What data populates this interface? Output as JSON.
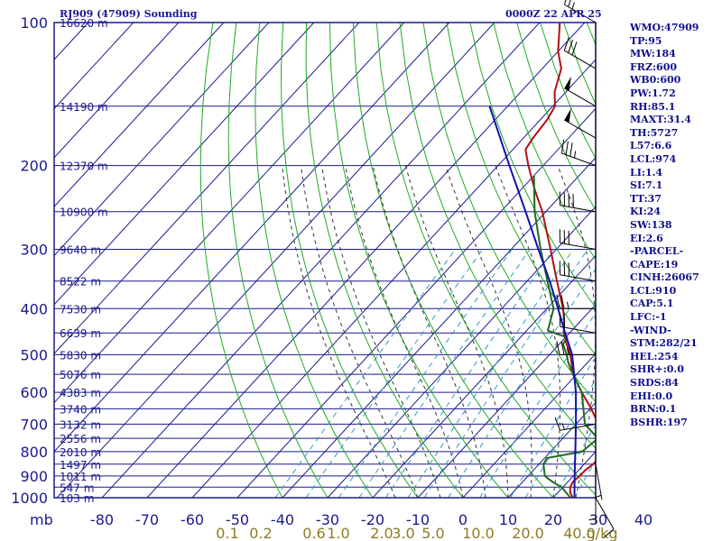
{
  "header": {
    "station": "RJ909 (47909) Sounding",
    "valid": "0000Z 22 APR 25"
  },
  "indices": [
    "WMO:47909",
    "TP:95",
    "MW:184",
    "FRZ:600",
    "WB0:600",
    "PW:1.72",
    "RH:85.1",
    "MAXT:31.4",
    "TH:5727",
    "L57:6.6",
    "LCL:974",
    "LI:1.4",
    "SI:7.1",
    "TT:37",
    "KI:24",
    "SW:138",
    "EI:2.6",
    "-PARCEL-",
    "CAPE:19",
    "CINH:26067",
    "LCL:910",
    "CAP:5.1",
    "LFC:-1",
    "-WIND-",
    "STM:282/21",
    "HEL:254",
    "SHR+:0.0",
    "SRDS:84",
    "EHI:0.0",
    "BRN:0.1",
    "BSHR:197"
  ],
  "colors": {
    "isobar": "#1a1a8c",
    "isotherm": "#1a1a8c",
    "dry_adiabat": "#22aa22",
    "moist_adiabat": "#333333",
    "mixing_ratio": "#3399cc",
    "temperature": "#b01010",
    "dewpoint": "#1e6b1e",
    "parcel": "#1010b0",
    "axis_text": "#1a1a8c",
    "mixing_text": "#8b7b2a"
  },
  "chart_data": {
    "type": "line",
    "diagram": "skew-t log-p",
    "y_axis": {
      "unit": "mb",
      "scale": "log",
      "range": [
        1000,
        100
      ],
      "ticks": [
        100,
        200,
        300,
        400,
        500,
        600,
        700,
        800,
        900,
        1000
      ]
    },
    "x_axis": {
      "unit": "C",
      "ticks": [
        -80,
        -70,
        -60,
        -50,
        -40,
        -30,
        -20,
        -10,
        0,
        10,
        20,
        30,
        40
      ],
      "unit_label": "mb"
    },
    "mixing_ratio_labels": [
      "0.1",
      "0.2",
      "0.6",
      "1.0",
      "2.0",
      "3.0",
      "5.0",
      "10.0",
      "20.0",
      "40.0",
      "g/kg"
    ],
    "height_labels": [
      {
        "p": 100,
        "text": "16620 m"
      },
      {
        "p": 150,
        "text": "14190 m"
      },
      {
        "p": 200,
        "text": "12370 m"
      },
      {
        "p": 250,
        "text": "10900 m"
      },
      {
        "p": 300,
        "text": "9640 m"
      },
      {
        "p": 350,
        "text": "8522 m"
      },
      {
        "p": 400,
        "text": "7530 m"
      },
      {
        "p": 450,
        "text": "6639 m"
      },
      {
        "p": 500,
        "text": "5830 m"
      },
      {
        "p": 550,
        "text": "5076 m"
      },
      {
        "p": 600,
        "text": "4383 m"
      },
      {
        "p": 650,
        "text": "3740 m"
      },
      {
        "p": 700,
        "text": "3132 m"
      },
      {
        "p": 750,
        "text": "2556 m"
      },
      {
        "p": 800,
        "text": "2010 m"
      },
      {
        "p": 850,
        "text": "1497 m"
      },
      {
        "p": 900,
        "text": "1011 m"
      },
      {
        "p": 950,
        "text": "547 m"
      },
      {
        "p": 1000,
        "text": "103 m"
      }
    ],
    "series": [
      {
        "key": "temperature",
        "points": [
          [
            1000,
            24.3
          ],
          [
            975,
            22.7
          ],
          [
            950,
            21.6
          ],
          [
            925,
            21.1
          ],
          [
            900,
            21.4
          ],
          [
            875,
            21.5
          ],
          [
            850,
            22.0
          ],
          [
            825,
            22.3
          ],
          [
            800,
            20.6
          ],
          [
            750,
            17.9
          ],
          [
            700,
            15.0
          ],
          [
            650,
            10.3
          ],
          [
            600,
            4.8
          ],
          [
            550,
            -0.8
          ],
          [
            500,
            -5.4
          ],
          [
            475,
            -8.4
          ],
          [
            450,
            -11.3
          ],
          [
            425,
            -13.6
          ],
          [
            400,
            -16.4
          ],
          [
            350,
            -23.4
          ],
          [
            300,
            -31.3
          ],
          [
            250,
            -40.8
          ],
          [
            225,
            -46.9
          ],
          [
            200,
            -53.3
          ],
          [
            185,
            -57.2
          ],
          [
            175,
            -57.9
          ],
          [
            160,
            -58.5
          ],
          [
            150,
            -59.5
          ],
          [
            140,
            -62.5
          ],
          [
            125,
            -65.8
          ],
          [
            115,
            -70.0
          ],
          [
            100,
            -75.5
          ]
        ]
      },
      {
        "key": "dewpoint",
        "points": [
          [
            1000,
            23.8
          ],
          [
            975,
            21.8
          ],
          [
            950,
            19.7
          ],
          [
            925,
            16.5
          ],
          [
            900,
            13.7
          ],
          [
            850,
            11.0
          ],
          [
            825,
            10.5
          ],
          [
            800,
            17.0
          ],
          [
            750,
            17.8
          ],
          [
            700,
            12.0
          ],
          [
            600,
            4.8
          ],
          [
            550,
            -0.8
          ],
          [
            520,
            -4.2
          ],
          [
            500,
            -6.2
          ],
          [
            475,
            -9.2
          ],
          [
            460,
            -9.6
          ],
          [
            445,
            -15.3
          ],
          [
            400,
            -18.5
          ],
          [
            350,
            -25.5
          ],
          [
            300,
            -33.5
          ],
          [
            250,
            -42.5
          ],
          [
            210,
            -50.0
          ]
        ]
      },
      {
        "key": "parcel",
        "points": [
          [
            1000,
            24.7
          ],
          [
            900,
            20.3
          ],
          [
            800,
            15.5
          ],
          [
            700,
            10.0
          ],
          [
            600,
            3.5
          ],
          [
            500,
            -5.0
          ],
          [
            450,
            -11.0
          ],
          [
            400,
            -17.5
          ],
          [
            350,
            -25.0
          ],
          [
            300,
            -34.0
          ],
          [
            250,
            -44.5
          ],
          [
            200,
            -57.5
          ],
          [
            150,
            -74.0
          ]
        ]
      }
    ],
    "wind_barbs": [
      {
        "p": 100,
        "dir": 300,
        "spd": 25
      },
      {
        "p": 125,
        "dir": 300,
        "spd": 30
      },
      {
        "p": 150,
        "dir": 300,
        "spd": 50
      },
      {
        "p": 175,
        "dir": 300,
        "spd": 50
      },
      {
        "p": 200,
        "dir": 290,
        "spd": 35
      },
      {
        "p": 250,
        "dir": 280,
        "spd": 40
      },
      {
        "p": 300,
        "dir": 280,
        "spd": 30
      },
      {
        "p": 350,
        "dir": 280,
        "spd": 30
      },
      {
        "p": 400,
        "dir": 270,
        "spd": 25
      },
      {
        "p": 450,
        "dir": 280,
        "spd": 20
      },
      {
        "p": 500,
        "dir": 270,
        "spd": 25
      },
      {
        "p": 700,
        "dir": 260,
        "spd": 15
      },
      {
        "p": 850,
        "dir": 170,
        "spd": 5
      },
      {
        "p": 950,
        "dir": 180,
        "spd": 5
      },
      {
        "p": 1000,
        "dir": 150,
        "spd": 10
      }
    ]
  }
}
